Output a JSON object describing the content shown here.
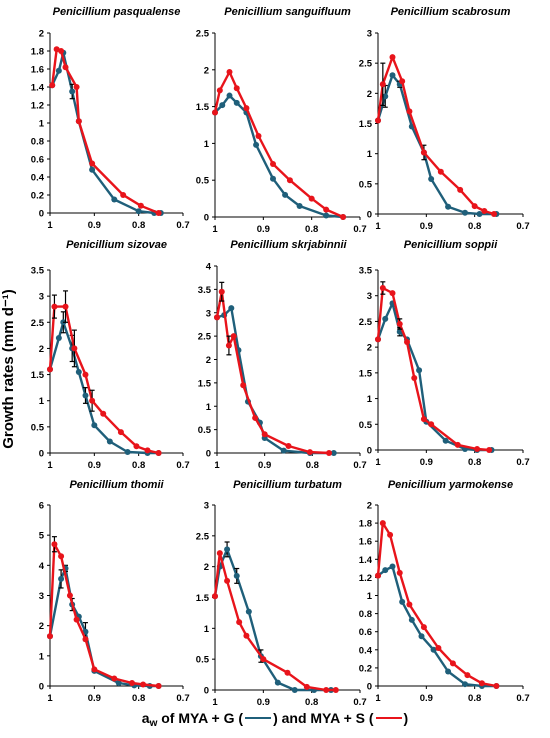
{
  "figure": {
    "y_label": "Growth rates (mm d⁻¹)",
    "x_label": {
      "a": "a",
      "sub": "w",
      "of": " of MYA + G (",
      "and": ") and MYA + S (",
      "close": ")"
    }
  },
  "colors": {
    "mya_g": "#1f5f7a",
    "mya_s": "#e8141b",
    "error_bar": "#000000"
  },
  "chart_data": [
    {
      "type": "line",
      "title": "Penicillium pasqualense",
      "x_ticks": [
        1,
        0.9,
        0.8,
        0.7
      ],
      "xlim": [
        1,
        0.7
      ],
      "y_ticks": [
        0,
        0.2,
        0.4,
        0.6,
        0.8,
        1,
        1.2,
        1.4,
        1.6,
        1.8,
        2
      ],
      "ylim": [
        0,
        2
      ],
      "series": [
        {
          "key": "mya_g",
          "x": [
            0.995,
            0.98,
            0.97,
            0.95,
            0.935,
            0.905,
            0.855,
            0.8,
            0.765,
            0.75
          ],
          "y": [
            1.42,
            1.58,
            1.78,
            1.35,
            1.02,
            0.48,
            0.15,
            0.02,
            0.0,
            0.0
          ],
          "err": [
            0,
            0,
            0,
            0.08,
            0,
            0,
            0,
            0,
            0,
            0
          ]
        },
        {
          "key": "mya_s",
          "x": [
            0.995,
            0.985,
            0.975,
            0.965,
            0.94,
            0.935,
            0.905,
            0.835,
            0.795,
            0.755
          ],
          "y": [
            1.42,
            1.82,
            1.8,
            1.62,
            1.4,
            1.02,
            0.55,
            0.2,
            0.08,
            0.0
          ],
          "err": [
            0,
            0,
            0,
            0,
            0,
            0,
            0,
            0,
            0,
            0
          ]
        }
      ]
    },
    {
      "type": "line",
      "title": "Penicillium sanguifluum",
      "x_ticks": [
        1,
        0.9,
        0.8,
        0.7
      ],
      "xlim": [
        1,
        0.7
      ],
      "y_ticks": [
        0,
        0.5,
        1,
        1.5,
        2,
        2.5
      ],
      "ylim": [
        0,
        2.5
      ],
      "series": [
        {
          "key": "mya_g",
          "x": [
            1.0,
            0.985,
            0.97,
            0.955,
            0.935,
            0.915,
            0.88,
            0.855,
            0.825,
            0.77,
            0.735
          ],
          "y": [
            1.42,
            1.52,
            1.65,
            1.55,
            1.42,
            0.98,
            0.52,
            0.3,
            0.15,
            0.02,
            0.0
          ],
          "err": [
            0,
            0,
            0,
            0,
            0,
            0,
            0,
            0,
            0,
            0,
            0
          ]
        },
        {
          "key": "mya_s",
          "x": [
            1.0,
            0.99,
            0.97,
            0.955,
            0.935,
            0.91,
            0.88,
            0.845,
            0.8,
            0.77,
            0.735
          ],
          "y": [
            1.42,
            1.72,
            1.97,
            1.75,
            1.48,
            1.1,
            0.72,
            0.5,
            0.25,
            0.1,
            0.0
          ],
          "err": [
            0,
            0,
            0,
            0,
            0,
            0,
            0,
            0,
            0,
            0,
            0
          ]
        }
      ]
    },
    {
      "type": "line",
      "title": "Penicillium scabrosum",
      "x_ticks": [
        1,
        0.9,
        0.8,
        0.7
      ],
      "xlim": [
        1,
        0.7
      ],
      "y_ticks": [
        0,
        0.5,
        1,
        1.5,
        2,
        2.5,
        3
      ],
      "ylim": [
        0,
        3
      ],
      "series": [
        {
          "key": "mya_g",
          "x": [
            1.0,
            0.985,
            0.97,
            0.955,
            0.93,
            0.905,
            0.89,
            0.855,
            0.82,
            0.79,
            0.755
          ],
          "y": [
            1.55,
            1.95,
            2.3,
            2.15,
            1.45,
            1.02,
            0.58,
            0.12,
            0.02,
            0.0,
            0.0
          ],
          "err": [
            0,
            0.18,
            0,
            0.05,
            0,
            0.12,
            0,
            0,
            0,
            0,
            0
          ]
        },
        {
          "key": "mya_s",
          "x": [
            1.0,
            0.99,
            0.97,
            0.95,
            0.935,
            0.905,
            0.87,
            0.83,
            0.8,
            0.78,
            0.76
          ],
          "y": [
            1.55,
            2.15,
            2.6,
            2.2,
            1.7,
            1.02,
            0.7,
            0.4,
            0.13,
            0.05,
            0.0
          ],
          "err": [
            0,
            0.35,
            0,
            0,
            0,
            0,
            0,
            0,
            0,
            0,
            0
          ]
        }
      ]
    },
    {
      "type": "line",
      "title": "Penicillium sizovae",
      "x_ticks": [
        1,
        0.9,
        0.8,
        0.7
      ],
      "xlim": [
        1,
        0.7
      ],
      "y_ticks": [
        0,
        0.5,
        1,
        1.5,
        2,
        2.5,
        3,
        3.5
      ],
      "ylim": [
        0,
        3.5
      ],
      "series": [
        {
          "key": "mya_g",
          "x": [
            1.0,
            0.98,
            0.97,
            0.95,
            0.935,
            0.92,
            0.9,
            0.865,
            0.825,
            0.78,
            0.755
          ],
          "y": [
            1.6,
            2.2,
            2.5,
            2.0,
            1.55,
            1.1,
            0.53,
            0.22,
            0.02,
            0.0,
            0.0
          ],
          "err": [
            0,
            0,
            0.2,
            0.25,
            0,
            0.15,
            0,
            0,
            0,
            0,
            0
          ]
        },
        {
          "key": "mya_s",
          "x": [
            1.0,
            0.99,
            0.965,
            0.945,
            0.92,
            0.905,
            0.88,
            0.84,
            0.805,
            0.78,
            0.755
          ],
          "y": [
            1.6,
            2.8,
            2.8,
            2.0,
            1.5,
            1.0,
            0.75,
            0.4,
            0.13,
            0.05,
            0.0
          ],
          "err": [
            0,
            0.22,
            0.3,
            0.35,
            0,
            0.2,
            0,
            0,
            0,
            0,
            0
          ]
        }
      ]
    },
    {
      "type": "line",
      "title": "Penicillium skrjabinnii",
      "x_ticks": [
        1,
        0.9,
        0.8,
        0.7
      ],
      "xlim": [
        1,
        0.7
      ],
      "y_ticks": [
        0,
        0.5,
        1,
        1.5,
        2,
        2.5,
        3,
        3.5,
        4
      ],
      "ylim": [
        0,
        4
      ],
      "series": [
        {
          "key": "mya_g",
          "x": [
            1.0,
            0.985,
            0.97,
            0.955,
            0.935,
            0.91,
            0.9,
            0.86,
            0.805,
            0.755
          ],
          "y": [
            2.9,
            2.95,
            3.1,
            2.2,
            1.1,
            0.65,
            0.32,
            0.05,
            0.0,
            0.0
          ],
          "err": [
            0,
            0,
            0,
            0,
            0,
            0,
            0,
            0,
            0,
            0
          ]
        },
        {
          "key": "mya_s",
          "x": [
            1.0,
            0.99,
            0.975,
            0.965,
            0.945,
            0.92,
            0.9,
            0.85,
            0.805,
            0.765
          ],
          "y": [
            2.9,
            3.45,
            2.3,
            2.5,
            1.45,
            0.75,
            0.4,
            0.15,
            0.02,
            0.0
          ],
          "err": [
            0,
            0.2,
            0.2,
            0,
            0,
            0,
            0,
            0,
            0,
            0
          ]
        }
      ]
    },
    {
      "type": "line",
      "title": "Penicillium soppii",
      "x_ticks": [
        1,
        0.9,
        0.8,
        0.7
      ],
      "xlim": [
        1,
        0.7
      ],
      "y_ticks": [
        0,
        0.5,
        1,
        1.5,
        2,
        2.5,
        3,
        3.5
      ],
      "ylim": [
        0,
        3.5
      ],
      "series": [
        {
          "key": "mya_g",
          "x": [
            1.0,
            0.985,
            0.97,
            0.955,
            0.94,
            0.915,
            0.9,
            0.86,
            0.82,
            0.795,
            0.765
          ],
          "y": [
            2.15,
            2.55,
            2.85,
            2.3,
            2.15,
            1.55,
            0.55,
            0.18,
            0.02,
            0.0,
            0.0
          ],
          "err": [
            0,
            0,
            0,
            0.08,
            0,
            0,
            0,
            0,
            0,
            0,
            0
          ]
        },
        {
          "key": "mya_s",
          "x": [
            1.0,
            0.99,
            0.97,
            0.955,
            0.94,
            0.925,
            0.905,
            0.89,
            0.835,
            0.795,
            0.77
          ],
          "y": [
            2.15,
            3.15,
            3.05,
            2.45,
            2.1,
            1.4,
            0.6,
            0.5,
            0.1,
            0.02,
            0.0
          ],
          "err": [
            0,
            0.12,
            0,
            0.1,
            0,
            0,
            0,
            0,
            0,
            0,
            0
          ]
        }
      ]
    },
    {
      "type": "line",
      "title": "Penicillium thomii",
      "x_ticks": [
        1,
        0.9,
        0.8,
        0.7
      ],
      "xlim": [
        1,
        0.7
      ],
      "y_ticks": [
        0,
        1,
        2,
        3,
        4,
        5,
        6
      ],
      "ylim": [
        0,
        6
      ],
      "series": [
        {
          "key": "mya_g",
          "x": [
            1.0,
            0.975,
            0.965,
            0.95,
            0.935,
            0.92,
            0.9,
            0.845,
            0.81,
            0.775,
            0.755
          ],
          "y": [
            1.65,
            3.55,
            3.9,
            2.7,
            2.3,
            1.8,
            0.5,
            0.1,
            0.02,
            0.0,
            0.0
          ],
          "err": [
            0,
            0.3,
            0.1,
            0.2,
            0,
            0.3,
            0,
            0,
            0,
            0,
            0
          ]
        },
        {
          "key": "mya_s",
          "x": [
            1.0,
            0.99,
            0.975,
            0.955,
            0.94,
            0.92,
            0.9,
            0.855,
            0.815,
            0.79,
            0.755
          ],
          "y": [
            1.65,
            4.7,
            4.3,
            3.0,
            2.2,
            1.55,
            0.55,
            0.25,
            0.1,
            0.05,
            0.0
          ],
          "err": [
            0,
            0.25,
            0,
            0,
            0,
            0,
            0,
            0,
            0,
            0,
            0
          ]
        }
      ]
    },
    {
      "type": "line",
      "title": "Penicillium turbatum",
      "x_ticks": [
        1,
        0.9,
        0.8,
        0.7
      ],
      "xlim": [
        1,
        0.7
      ],
      "y_ticks": [
        0,
        0.5,
        1,
        1.5,
        2,
        2.5,
        3
      ],
      "ylim": [
        0,
        3
      ],
      "series": [
        {
          "key": "mya_g",
          "x": [
            1.0,
            0.99,
            0.975,
            0.955,
            0.93,
            0.905,
            0.87,
            0.835,
            0.795,
            0.76
          ],
          "y": [
            1.52,
            2.0,
            2.28,
            1.85,
            1.27,
            0.55,
            0.12,
            0.0,
            0.0,
            0.0
          ],
          "err": [
            0,
            0,
            0.12,
            0.12,
            0,
            0.1,
            0,
            0,
            0,
            0
          ]
        },
        {
          "key": "mya_s",
          "x": [
            1.0,
            0.99,
            0.975,
            0.95,
            0.935,
            0.9,
            0.85,
            0.81,
            0.77,
            0.75
          ],
          "y": [
            1.52,
            2.22,
            1.77,
            1.1,
            0.88,
            0.5,
            0.28,
            0.05,
            0.0,
            0.0
          ],
          "err": [
            0,
            0,
            0,
            0,
            0,
            0,
            0,
            0,
            0,
            0
          ]
        }
      ]
    },
    {
      "type": "line",
      "title": "Penicillium yarmokense",
      "x_ticks": [
        1,
        0.9,
        0.8,
        0.7
      ],
      "xlim": [
        1,
        0.7
      ],
      "y_ticks": [
        0,
        0.2,
        0.4,
        0.6,
        0.8,
        1,
        1.2,
        1.4,
        1.6,
        1.8,
        2
      ],
      "ylim": [
        0,
        2
      ],
      "series": [
        {
          "key": "mya_g",
          "x": [
            1.0,
            0.985,
            0.97,
            0.95,
            0.93,
            0.91,
            0.885,
            0.855,
            0.82,
            0.785,
            0.755
          ],
          "y": [
            1.22,
            1.28,
            1.32,
            0.93,
            0.73,
            0.55,
            0.4,
            0.16,
            0.02,
            0.0,
            0.0
          ],
          "err": [
            0,
            0,
            0,
            0,
            0,
            0,
            0,
            0,
            0,
            0,
            0
          ]
        },
        {
          "key": "mya_s",
          "x": [
            1.0,
            0.99,
            0.975,
            0.955,
            0.935,
            0.905,
            0.875,
            0.845,
            0.815,
            0.785,
            0.755
          ],
          "y": [
            1.22,
            1.8,
            1.67,
            1.25,
            0.9,
            0.65,
            0.42,
            0.25,
            0.12,
            0.03,
            0.0
          ],
          "err": [
            0,
            0,
            0,
            0,
            0,
            0,
            0,
            0,
            0,
            0,
            0
          ]
        }
      ]
    }
  ]
}
